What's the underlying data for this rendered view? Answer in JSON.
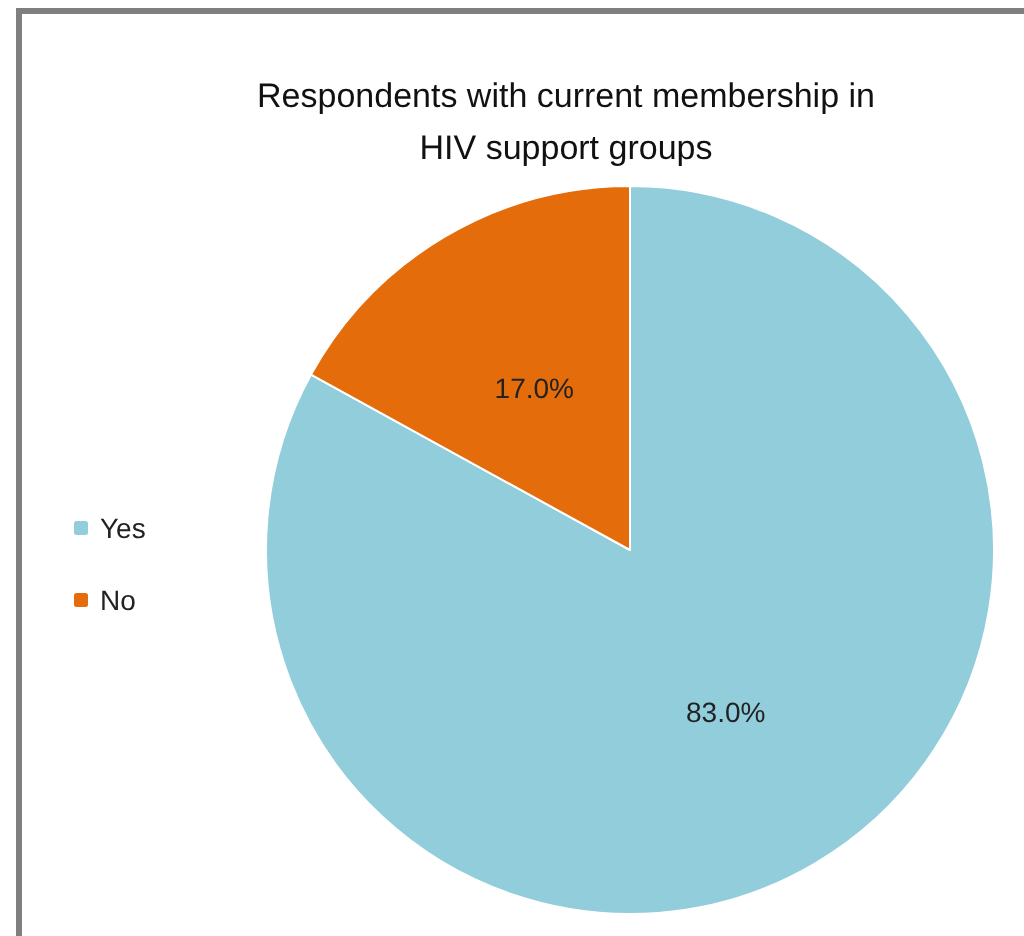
{
  "chart_data": {
    "type": "pie",
    "title": "Respondents with current membership in\nHIV support groups",
    "categories": [
      "Yes",
      "No"
    ],
    "values": [
      83,
      17
    ],
    "colors": [
      "#92cddc",
      "#e46c0a"
    ],
    "value_labels": [
      "83.0%",
      "17.0%"
    ],
    "legend": "left"
  }
}
